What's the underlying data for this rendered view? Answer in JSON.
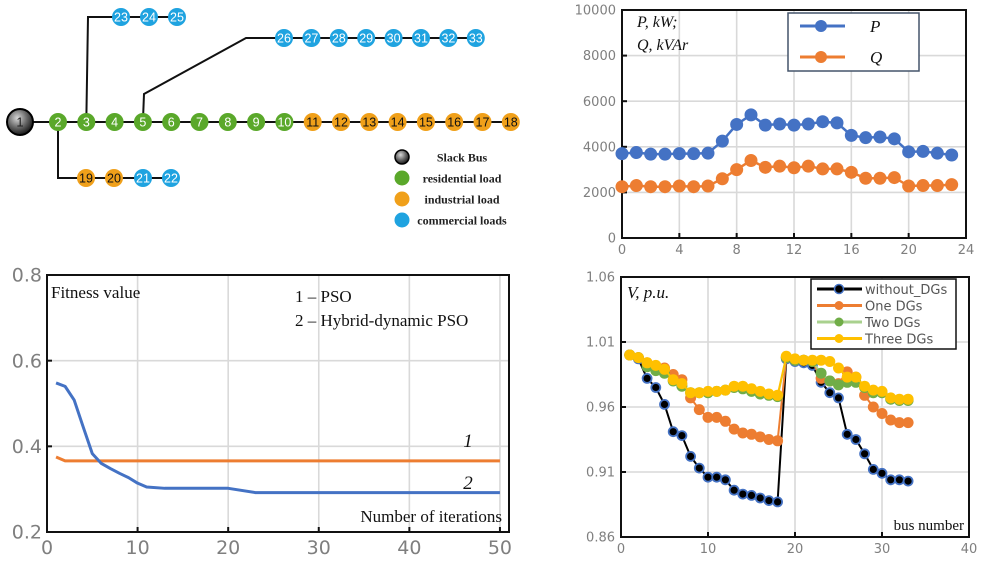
{
  "network": {
    "node_colors": {
      "slack": "#3a3a3a",
      "residential": "#5aa82a",
      "industrial": "#f0a01a",
      "commercial": "#1fa3e0"
    },
    "nodes": [
      {
        "id": "1",
        "type": "slack"
      },
      {
        "id": "2",
        "type": "residential"
      },
      {
        "id": "3",
        "type": "residential"
      },
      {
        "id": "4",
        "type": "residential"
      },
      {
        "id": "5",
        "type": "residential"
      },
      {
        "id": "6",
        "type": "residential"
      },
      {
        "id": "7",
        "type": "residential"
      },
      {
        "id": "8",
        "type": "residential"
      },
      {
        "id": "9",
        "type": "residential"
      },
      {
        "id": "10",
        "type": "residential"
      },
      {
        "id": "11",
        "type": "industrial"
      },
      {
        "id": "12",
        "type": "industrial"
      },
      {
        "id": "13",
        "type": "industrial"
      },
      {
        "id": "14",
        "type": "industrial"
      },
      {
        "id": "15",
        "type": "industrial"
      },
      {
        "id": "16",
        "type": "industrial"
      },
      {
        "id": "17",
        "type": "industrial"
      },
      {
        "id": "18",
        "type": "industrial"
      },
      {
        "id": "19",
        "type": "industrial"
      },
      {
        "id": "20",
        "type": "industrial"
      },
      {
        "id": "21",
        "type": "commercial"
      },
      {
        "id": "22",
        "type": "commercial"
      },
      {
        "id": "23",
        "type": "commercial"
      },
      {
        "id": "24",
        "type": "commercial"
      },
      {
        "id": "25",
        "type": "commercial"
      },
      {
        "id": "26",
        "type": "commercial"
      },
      {
        "id": "27",
        "type": "commercial"
      },
      {
        "id": "28",
        "type": "commercial"
      },
      {
        "id": "29",
        "type": "commercial"
      },
      {
        "id": "30",
        "type": "commercial"
      },
      {
        "id": "31",
        "type": "commercial"
      },
      {
        "id": "32",
        "type": "commercial"
      },
      {
        "id": "33",
        "type": "commercial"
      }
    ],
    "edges": [
      [
        "1",
        "2"
      ],
      [
        "2",
        "3"
      ],
      [
        "3",
        "4"
      ],
      [
        "4",
        "5"
      ],
      [
        "5",
        "6"
      ],
      [
        "6",
        "7"
      ],
      [
        "7",
        "8"
      ],
      [
        "8",
        "9"
      ],
      [
        "9",
        "10"
      ],
      [
        "10",
        "11"
      ],
      [
        "11",
        "12"
      ],
      [
        "12",
        "13"
      ],
      [
        "13",
        "14"
      ],
      [
        "14",
        "15"
      ],
      [
        "15",
        "16"
      ],
      [
        "16",
        "17"
      ],
      [
        "17",
        "18"
      ],
      [
        "2",
        "19"
      ],
      [
        "19",
        "20"
      ],
      [
        "20",
        "21"
      ],
      [
        "21",
        "22"
      ],
      [
        "3",
        "23"
      ],
      [
        "23",
        "24"
      ],
      [
        "24",
        "25"
      ],
      [
        "5",
        "26"
      ],
      [
        "26",
        "27"
      ],
      [
        "27",
        "28"
      ],
      [
        "28",
        "29"
      ],
      [
        "29",
        "30"
      ],
      [
        "30",
        "31"
      ],
      [
        "31",
        "32"
      ],
      [
        "32",
        "33"
      ]
    ],
    "legend": [
      {
        "type": "slack",
        "label": "Slack Bus"
      },
      {
        "type": "residential",
        "label": "residential load"
      },
      {
        "type": "industrial",
        "label": "industrial load"
      },
      {
        "type": "commercial",
        "label": "commercial loads"
      }
    ]
  },
  "chart_data": [
    {
      "type": "line",
      "title": "",
      "annotation": [
        "P, kW;",
        "Q, kVAr"
      ],
      "xlabel": "",
      "ylabel": "",
      "xlim": [
        0,
        24
      ],
      "ylim": [
        0,
        10000
      ],
      "xticks": [
        0,
        4,
        8,
        12,
        16,
        20,
        24
      ],
      "yticks": [
        0,
        2000,
        4000,
        6000,
        8000,
        10000
      ],
      "grid": true,
      "legend_position": "top-right",
      "x": [
        0,
        1,
        2,
        3,
        4,
        5,
        6,
        7,
        8,
        9,
        10,
        11,
        12,
        13,
        14,
        15,
        16,
        17,
        18,
        19,
        20,
        21,
        22,
        23
      ],
      "series": [
        {
          "name": "P",
          "color": "#4472c4",
          "values": [
            3700,
            3750,
            3680,
            3680,
            3700,
            3700,
            3720,
            4250,
            4980,
            5400,
            4950,
            5000,
            4950,
            5000,
            5100,
            5050,
            4500,
            4400,
            4430,
            4350,
            3780,
            3800,
            3720,
            3640
          ]
        },
        {
          "name": "Q",
          "color": "#ed7d31",
          "values": [
            2250,
            2300,
            2250,
            2250,
            2280,
            2250,
            2280,
            2600,
            3000,
            3400,
            3100,
            3150,
            3080,
            3150,
            3030,
            3030,
            2880,
            2620,
            2620,
            2650,
            2280,
            2300,
            2300,
            2340
          ]
        }
      ]
    },
    {
      "type": "line",
      "title": "",
      "annotation": [
        "Fitness value"
      ],
      "legend_text": [
        "1 – PSO",
        "2 – Hybrid-dynamic PSO"
      ],
      "series_labels": [
        "1",
        "2"
      ],
      "xlabel": "Number of iterations",
      "ylabel": "",
      "xlim": [
        0,
        51
      ],
      "ylim": [
        0.2,
        0.8
      ],
      "xticks": [
        0,
        10,
        20,
        30,
        40,
        50
      ],
      "yticks": [
        0.2,
        0.4,
        0.6,
        0.8
      ],
      "grid": true,
      "series": [
        {
          "name": "PSO",
          "label": "1",
          "color": "#ed7d31",
          "x": [
            1,
            2,
            50
          ],
          "values": [
            0.375,
            0.366,
            0.366
          ]
        },
        {
          "name": "Hybrid-dynamic PSO",
          "label": "2",
          "color": "#4472c4",
          "x": [
            1,
            2,
            3,
            4,
            5,
            6,
            7,
            8,
            9,
            10,
            11,
            13,
            20,
            23,
            50
          ],
          "values": [
            0.548,
            0.54,
            0.508,
            0.445,
            0.383,
            0.36,
            0.348,
            0.337,
            0.327,
            0.314,
            0.305,
            0.302,
            0.302,
            0.292,
            0.292
          ]
        }
      ]
    },
    {
      "type": "line",
      "title": "",
      "annotation": [
        "V, p.u."
      ],
      "xlabel": "bus number",
      "ylabel": "",
      "xlim": [
        0,
        40
      ],
      "ylim": [
        0.86,
        1.06
      ],
      "xticks": [
        0,
        10,
        20,
        30,
        40
      ],
      "yticks": [
        0.86,
        0.91,
        0.96,
        1.01,
        1.06
      ],
      "grid": true,
      "legend_position": "top-right",
      "x": [
        1,
        2,
        3,
        4,
        5,
        6,
        7,
        8,
        9,
        10,
        11,
        12,
        13,
        14,
        15,
        16,
        17,
        18,
        19,
        20,
        21,
        22,
        23,
        24,
        25,
        26,
        27,
        28,
        29,
        30,
        31,
        32,
        33
      ],
      "series": [
        {
          "name": "without_DGs",
          "color": "#000000",
          "marker_edge": "#4472c4",
          "values": [
            1.0,
            0.997,
            0.982,
            0.975,
            0.962,
            0.941,
            0.938,
            0.922,
            0.913,
            0.906,
            0.906,
            0.904,
            0.896,
            0.893,
            0.892,
            0.89,
            0.888,
            0.887,
            0.997,
            0.995,
            0.994,
            0.992,
            0.979,
            0.971,
            0.967,
            0.939,
            0.935,
            0.924,
            0.912,
            0.909,
            0.904,
            0.904,
            0.903
          ]
        },
        {
          "name": "One  DGs",
          "color": "#ed7d31",
          "values": [
            1.0,
            0.998,
            0.994,
            0.991,
            0.99,
            0.985,
            0.981,
            0.967,
            0.958,
            0.952,
            0.952,
            0.949,
            0.943,
            0.94,
            0.939,
            0.937,
            0.935,
            0.934,
            0.998,
            0.996,
            0.996,
            0.995,
            0.982,
            0.98,
            0.978,
            0.987,
            0.983,
            0.969,
            0.96,
            0.955,
            0.95,
            0.948,
            0.948
          ]
        },
        {
          "name": "Two  DGs",
          "color": "#70ad47",
          "line_color": "#a9d18e",
          "values": [
            1.0,
            0.998,
            0.991,
            0.988,
            0.986,
            0.98,
            0.976,
            0.971,
            0.971,
            0.971,
            0.972,
            0.973,
            0.975,
            0.974,
            0.972,
            0.97,
            0.969,
            0.968,
            0.998,
            0.996,
            0.996,
            0.995,
            0.986,
            0.98,
            0.977,
            0.979,
            0.979,
            0.975,
            0.971,
            0.971,
            0.966,
            0.965,
            0.965
          ]
        },
        {
          "name": "Three  DGs",
          "color": "#ffc000",
          "values": [
            1.0,
            0.998,
            0.994,
            0.992,
            0.989,
            0.981,
            0.978,
            0.971,
            0.971,
            0.972,
            0.972,
            0.973,
            0.976,
            0.976,
            0.974,
            0.972,
            0.97,
            0.969,
            0.999,
            0.997,
            0.996,
            0.996,
            0.996,
            0.995,
            0.99,
            0.983,
            0.983,
            0.976,
            0.973,
            0.972,
            0.967,
            0.966,
            0.966
          ]
        }
      ]
    }
  ]
}
